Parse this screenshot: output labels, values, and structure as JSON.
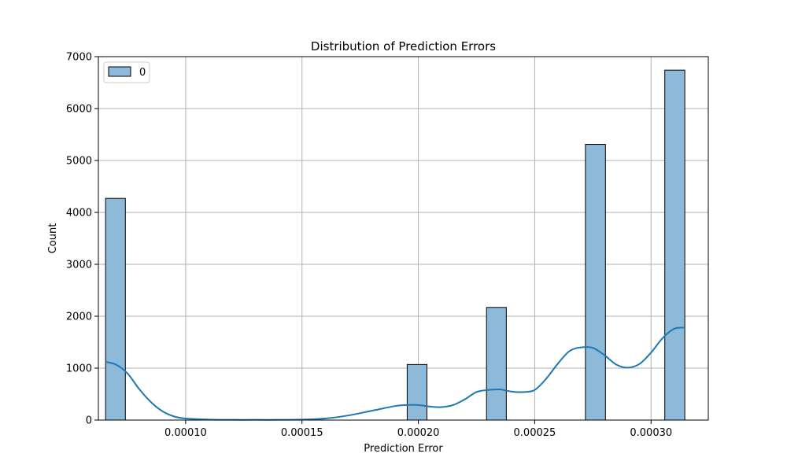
{
  "chart_data": {
    "type": "bar",
    "title": "Distribution of Prediction Errors",
    "xlabel": "Prediction Error",
    "ylabel": "Count",
    "xlim": [
      6.25e-05,
      0.0003246
    ],
    "ylim": [
      0,
      7000
    ],
    "x_ticks": [
      0.0001,
      0.00015,
      0.0002,
      0.00025,
      0.0003
    ],
    "x_tick_labels": [
      "0.00010",
      "0.00015",
      "0.00020",
      "0.00025",
      "0.00030"
    ],
    "y_ticks": [
      0,
      1000,
      2000,
      3000,
      4000,
      5000,
      6000,
      7000
    ],
    "y_tick_labels": [
      "0",
      "1000",
      "2000",
      "3000",
      "4000",
      "5000",
      "6000",
      "7000"
    ],
    "grid": true,
    "legend": {
      "position": "top-left",
      "entries": [
        "0"
      ]
    },
    "bars": [
      {
        "x0": 6.56e-05,
        "x1": 7.41e-05,
        "count": 4270
      },
      {
        "x0": 0.0001952,
        "x1": 0.0002037,
        "count": 1070
      },
      {
        "x0": 0.0002293,
        "x1": 0.0002378,
        "count": 2170
      },
      {
        "x0": 0.0002718,
        "x1": 0.0002804,
        "count": 5310
      },
      {
        "x0": 0.0003059,
        "x1": 0.0003145,
        "count": 6740
      }
    ],
    "kde": {
      "x": [
        6.56e-05,
        7e-05,
        7.5e-05,
        8e-05,
        8.5e-05,
        9e-05,
        9.5e-05,
        0.0001,
        0.00011,
        0.00012,
        0.00013,
        0.00014,
        0.00015,
        0.00016,
        0.00017,
        0.00018,
        0.00019,
        0.000195,
        0.0002,
        0.000205,
        0.00021,
        0.000215,
        0.00022,
        0.000225,
        0.00023,
        0.000235,
        0.00024,
        0.000245,
        0.00025,
        0.000255,
        0.00026,
        0.000265,
        0.00027,
        0.000275,
        0.00028,
        0.000285,
        0.00029,
        0.000295,
        0.0003,
        0.000305,
        0.00031,
        0.0003145
      ],
      "y": [
        1120,
        1070,
        900,
        600,
        350,
        170,
        70,
        30,
        10,
        5,
        5,
        5,
        10,
        30,
        90,
        180,
        270,
        290,
        290,
        260,
        250,
        290,
        400,
        540,
        580,
        590,
        550,
        540,
        580,
        800,
        1090,
        1330,
        1400,
        1390,
        1250,
        1070,
        1010,
        1080,
        1300,
        1580,
        1760,
        1780
      ]
    },
    "colors": {
      "bar_fill": "#8dbad9",
      "bar_edge": "#000000",
      "kde_line": "#1f77b4",
      "grid": "#b0b0b0"
    }
  }
}
